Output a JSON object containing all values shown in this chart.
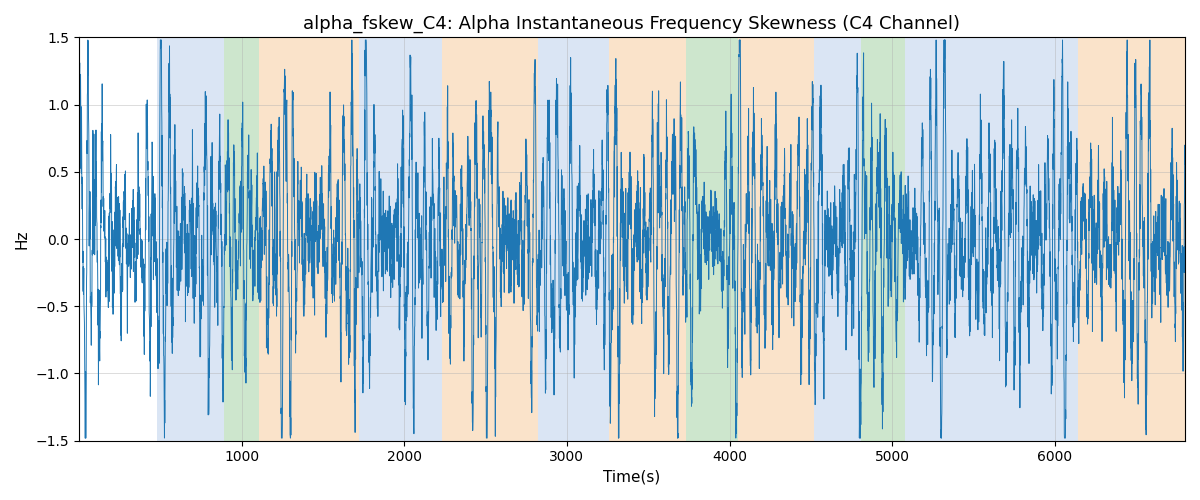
{
  "title": "alpha_fskew_C4: Alpha Instantaneous Frequency Skewness (C4 Channel)",
  "xlabel": "Time(s)",
  "ylabel": "Hz",
  "ylim": [
    -1.5,
    1.5
  ],
  "xlim": [
    0,
    6800
  ],
  "line_color": "#1f77b4",
  "line_width": 0.7,
  "background_color": "#ffffff",
  "grid_color": "#b0b0b0",
  "grid_alpha": 0.5,
  "segments": [
    {
      "start": 480,
      "end": 890,
      "color": "#aec6e8",
      "alpha": 0.45
    },
    {
      "start": 890,
      "end": 1110,
      "color": "#90c990",
      "alpha": 0.45
    },
    {
      "start": 1110,
      "end": 1720,
      "color": "#f5c18a",
      "alpha": 0.45
    },
    {
      "start": 1720,
      "end": 2230,
      "color": "#aec6e8",
      "alpha": 0.45
    },
    {
      "start": 2230,
      "end": 2820,
      "color": "#f5c18a",
      "alpha": 0.45
    },
    {
      "start": 2820,
      "end": 3260,
      "color": "#aec6e8",
      "alpha": 0.45
    },
    {
      "start": 3260,
      "end": 3730,
      "color": "#f5c18a",
      "alpha": 0.45
    },
    {
      "start": 3730,
      "end": 4050,
      "color": "#90c990",
      "alpha": 0.45
    },
    {
      "start": 4050,
      "end": 4520,
      "color": "#f5c18a",
      "alpha": 0.45
    },
    {
      "start": 4520,
      "end": 4810,
      "color": "#aec6e8",
      "alpha": 0.45
    },
    {
      "start": 4810,
      "end": 5080,
      "color": "#90c990",
      "alpha": 0.45
    },
    {
      "start": 5080,
      "end": 6140,
      "color": "#aec6e8",
      "alpha": 0.45
    },
    {
      "start": 6140,
      "end": 6800,
      "color": "#f5c18a",
      "alpha": 0.45
    }
  ],
  "seed": 17,
  "title_fontsize": 13,
  "label_fontsize": 11,
  "tick_fontsize": 10,
  "xticks": [
    1000,
    2000,
    3000,
    4000,
    5000,
    6000
  ],
  "yticks": [
    -1.5,
    -1.0,
    -0.5,
    0.0,
    0.5,
    1.0,
    1.5
  ]
}
